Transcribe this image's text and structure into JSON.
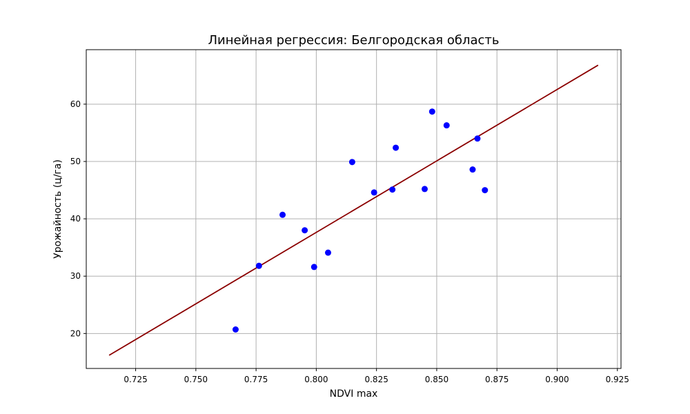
{
  "chart_data": {
    "type": "scatter",
    "title": "Линейная регрессия: Белгородская область",
    "xlabel": "NDVI max",
    "ylabel": "Урожайность (ц/га)",
    "xlim": [
      0.7045,
      0.9265
    ],
    "ylim": [
      13.9,
      69.5
    ],
    "xticks": [
      0.725,
      0.75,
      0.775,
      0.8,
      0.825,
      0.85,
      0.875,
      0.9,
      0.925
    ],
    "xtick_labels": [
      "0.725",
      "0.750",
      "0.775",
      "0.800",
      "0.825",
      "0.850",
      "0.875",
      "0.900",
      "0.925"
    ],
    "yticks": [
      20,
      30,
      40,
      50,
      60
    ],
    "ytick_labels": [
      "20",
      "30",
      "40",
      "50",
      "60"
    ],
    "grid": true,
    "legend": "none",
    "series": [
      {
        "type": "scatter",
        "color": "#0000ff",
        "points": [
          {
            "x": 0.7665,
            "y": 20.7
          },
          {
            "x": 0.7762,
            "y": 31.8
          },
          {
            "x": 0.786,
            "y": 40.7
          },
          {
            "x": 0.7952,
            "y": 38.0
          },
          {
            "x": 0.7991,
            "y": 31.6
          },
          {
            "x": 0.8049,
            "y": 34.1
          },
          {
            "x": 0.8149,
            "y": 49.9
          },
          {
            "x": 0.824,
            "y": 44.6
          },
          {
            "x": 0.8316,
            "y": 45.1
          },
          {
            "x": 0.833,
            "y": 52.4
          },
          {
            "x": 0.845,
            "y": 45.2
          },
          {
            "x": 0.8481,
            "y": 58.7
          },
          {
            "x": 0.8541,
            "y": 56.3
          },
          {
            "x": 0.8649,
            "y": 48.6
          },
          {
            "x": 0.8669,
            "y": 54.0
          },
          {
            "x": 0.87,
            "y": 45.0
          }
        ]
      },
      {
        "type": "line",
        "color": "#8b0000",
        "points": [
          {
            "x": 0.714,
            "y": 16.2
          },
          {
            "x": 0.917,
            "y": 66.8
          }
        ]
      }
    ]
  }
}
